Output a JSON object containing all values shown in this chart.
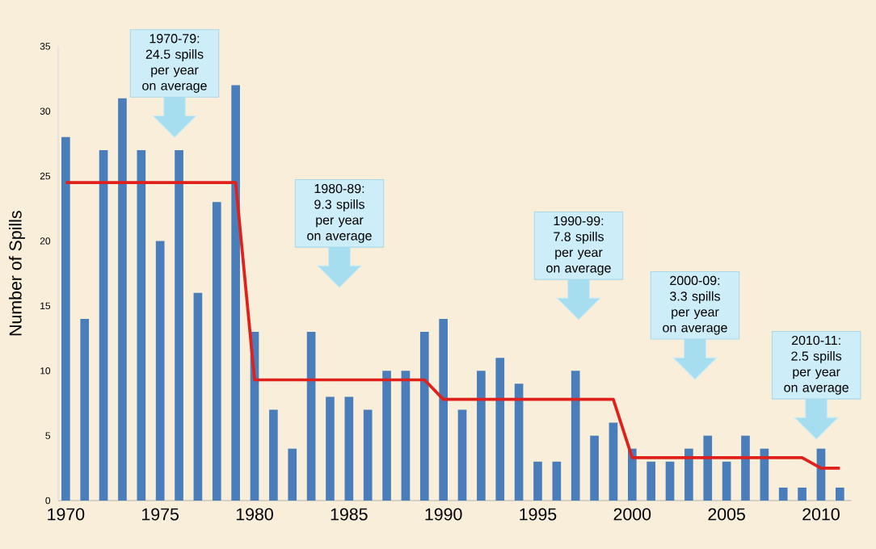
{
  "chart_data": {
    "type": "bar",
    "ylabel": "Number of Spills",
    "x": [
      1970,
      1971,
      1972,
      1973,
      1974,
      1975,
      1976,
      1977,
      1978,
      1979,
      1980,
      1981,
      1982,
      1983,
      1984,
      1985,
      1986,
      1987,
      1988,
      1989,
      1990,
      1991,
      1992,
      1993,
      1994,
      1995,
      1996,
      1997,
      1998,
      1999,
      2000,
      2001,
      2002,
      2003,
      2004,
      2005,
      2006,
      2007,
      2008,
      2009,
      2010,
      2011
    ],
    "xlim": [
      1969.6,
      2011.6
    ],
    "xticks": [
      1970,
      1975,
      1980,
      1985,
      1990,
      1995,
      2000,
      2005,
      2010
    ],
    "ylim": [
      0,
      35
    ],
    "yticks": [
      0,
      5,
      10,
      15,
      20,
      25,
      30,
      35
    ],
    "series": [
      {
        "color": "#4a7ebb",
        "values": [
          28,
          14,
          27,
          31,
          27,
          20,
          27,
          16,
          23,
          32,
          13,
          7,
          4,
          13,
          8,
          8,
          7,
          10,
          10,
          13,
          14,
          7,
          10,
          11,
          9,
          3,
          3,
          10,
          5,
          6,
          4,
          3,
          3,
          4,
          5,
          3,
          5,
          4,
          1,
          1,
          4,
          1
        ]
      },
      {
        "type": "line",
        "color": "#e0201b",
        "x": [
          1970,
          1979,
          1980,
          1989,
          1990,
          1999,
          2000,
          2009,
          2010,
          2011
        ],
        "values": [
          24.5,
          24.5,
          9.3,
          9.3,
          7.8,
          7.8,
          3.3,
          3.3,
          2.5,
          2.5
        ]
      }
    ],
    "annotations": [
      "1970-79: 24.5 spills per year on average",
      "1980-89: 9.3 spills per year on average",
      "1990-99: 7.8 spills per year on average",
      "2000-09: 3.3 spills per year on average",
      "2010-11: 2.5 spills per year on average"
    ]
  }
}
